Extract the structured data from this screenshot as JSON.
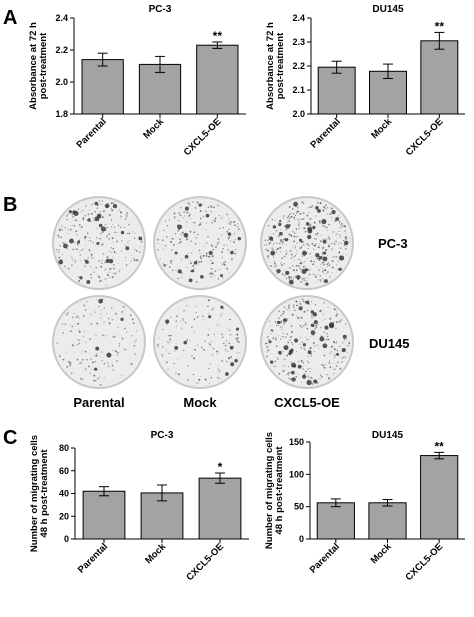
{
  "panels": {
    "a": "A",
    "b": "B",
    "c": "C"
  },
  "colors": {
    "bar": "#a3a3a3",
    "axis": "#000000",
    "dish_bg": "#ececec",
    "dish_rim": "#c8c8c8",
    "colony": "#3a3a3a"
  },
  "panel_b": {
    "row_labels": [
      "PC-3",
      "DU145"
    ],
    "column_labels": [
      "Parental",
      "Mock",
      "CXCL5-OE"
    ]
  },
  "chart_data": [
    {
      "type": "bar",
      "title": "PC-3",
      "ylabel": [
        "Absorbance at 72 h",
        "post-treatment"
      ],
      "categories": [
        "Parental",
        "Mock",
        "CXCL5-OE"
      ],
      "values": [
        2.14,
        2.11,
        2.23
      ],
      "errors": [
        0.04,
        0.05,
        0.02
      ],
      "significance": [
        "",
        "",
        "**"
      ],
      "ylim": [
        1.8,
        2.4
      ],
      "yticks": [
        "1.8",
        "2.0",
        "2.2",
        "2.4"
      ],
      "grid": false
    },
    {
      "type": "bar",
      "title": "DU145",
      "ylabel": [
        "Absorbance at 72 h",
        "post-treatment"
      ],
      "categories": [
        "Parental",
        "Mock",
        "CXCL5-OE"
      ],
      "values": [
        2.195,
        2.178,
        2.305
      ],
      "errors": [
        0.025,
        0.03,
        0.035
      ],
      "significance": [
        "",
        "",
        "**"
      ],
      "ylim": [
        2.0,
        2.4
      ],
      "yticks": [
        "2.0",
        "2.1",
        "2.2",
        "2.3",
        "2.4"
      ],
      "grid": false
    },
    {
      "type": "bar",
      "title": "PC-3",
      "ylabel": [
        "Number of migrating cells",
        "48 h post-treatment"
      ],
      "categories": [
        "Parental",
        "Mock",
        "CXCL5-OE"
      ],
      "values": [
        42,
        40.5,
        53.5
      ],
      "errors": [
        4,
        7,
        4.5
      ],
      "significance": [
        "",
        "",
        "*"
      ],
      "ylim": [
        0,
        80
      ],
      "yticks": [
        "0",
        "20",
        "40",
        "60",
        "80"
      ],
      "grid": false
    },
    {
      "type": "bar",
      "title": "DU145",
      "ylabel": [
        "Number of migrating cells",
        "48 h post-treatment"
      ],
      "categories": [
        "Parental",
        "Mock",
        "CXCL5-OE"
      ],
      "values": [
        56,
        56,
        129
      ],
      "errors": [
        6,
        5,
        5
      ],
      "significance": [
        "",
        "",
        "**"
      ],
      "ylim": [
        0,
        150
      ],
      "yticks": [
        "0",
        "50",
        "100",
        "150"
      ],
      "grid": false
    }
  ]
}
